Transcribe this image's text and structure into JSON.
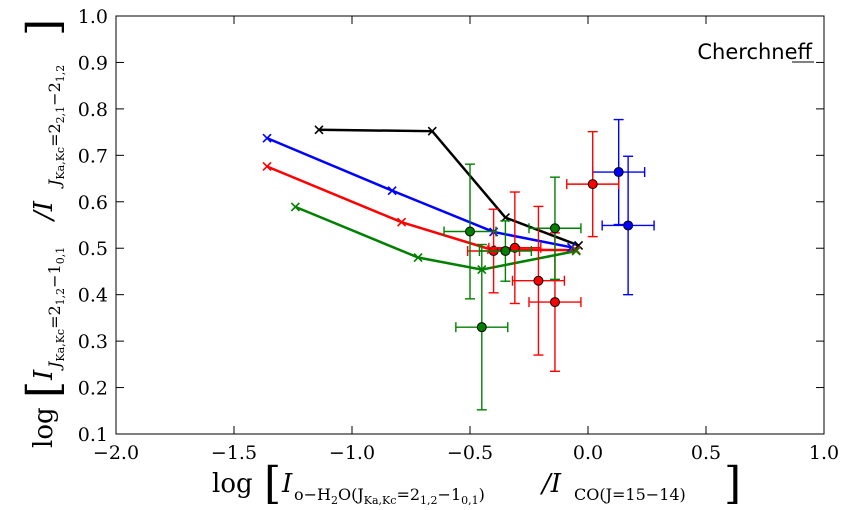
{
  "chart_data": {
    "type": "scatter",
    "title": "",
    "annotation": "Cherchneff",
    "xlabel": {
      "prefix": "log",
      "main": "I",
      "sub1": "o−H",
      "sub1_sub": "2",
      "sub2": "O(J",
      "sub2_sub": "Ka,Kc",
      "sub3": "=2",
      "sub3_sub": "1,2",
      "sub4": "−1",
      "sub4_sub": "0,1",
      "sub5": ")",
      "div": "/I",
      "sub6": "CO(J=15−14)"
    },
    "ylabel": {
      "prefix": "log",
      "main": "I",
      "sub1": "J",
      "sub1_sub": "Ka,Kc",
      "sub2": "=2",
      "sub2_sub": "1,2",
      "sub3": "−1",
      "sub3_sub": "0,1",
      "div": "/I",
      "sub4": "J",
      "sub4_sub": "Ka,Kc",
      "sub5": "=2",
      "sub5_sub": "2,1",
      "sub6": "−2",
      "sub6_sub": "1,2"
    },
    "xlim": [
      -2.0,
      1.0
    ],
    "ylim": [
      0.1,
      1.0
    ],
    "xticks": [
      "−2.0",
      "−1.5",
      "−1.0",
      "−0.5",
      "0.0",
      "0.5",
      "1.0"
    ],
    "yticks": [
      "0.1",
      "0.2",
      "0.3",
      "0.4",
      "0.5",
      "0.6",
      "0.7",
      "0.8",
      "0.9",
      "1.0"
    ],
    "xtick_values": [
      -2.0,
      -1.5,
      -1.0,
      -0.5,
      0.0,
      0.5,
      1.0
    ],
    "ytick_values": [
      0.1,
      0.2,
      0.3,
      0.4,
      0.5,
      0.6,
      0.7,
      0.8,
      0.9,
      1.0
    ],
    "model_series": [
      {
        "name": "black",
        "color": "#000000",
        "x": [
          -1.14,
          -0.66,
          -0.35,
          -0.04
        ],
        "y": [
          0.755,
          0.752,
          0.566,
          0.506
        ]
      },
      {
        "name": "blue",
        "color": "#0000ff",
        "x": [
          -1.36,
          -0.83,
          -0.4,
          -0.07
        ],
        "y": [
          0.737,
          0.624,
          0.535,
          0.502
        ]
      },
      {
        "name": "red",
        "color": "#ff0000",
        "x": [
          -1.36,
          -0.79,
          -0.41,
          -0.05
        ],
        "y": [
          0.676,
          0.556,
          0.497,
          0.496
        ]
      },
      {
        "name": "green",
        "color": "#008000",
        "x": [
          -1.24,
          -0.72,
          -0.45,
          -0.05
        ],
        "y": [
          0.589,
          0.48,
          0.454,
          0.494
        ]
      }
    ],
    "observations": [
      {
        "color": "#0000ff",
        "points": [
          {
            "x": 0.13,
            "y": 0.664,
            "xerr": 0.11,
            "yerr": 0.113
          },
          {
            "x": 0.17,
            "y": 0.549,
            "xerr": 0.11,
            "yerr": 0.149
          }
        ]
      },
      {
        "color": "#ff0000",
        "points": [
          {
            "x": 0.02,
            "y": 0.638,
            "xerr": 0.11,
            "yerr": 0.113
          },
          {
            "x": -0.4,
            "y": 0.494,
            "xerr": 0.11,
            "yerr": 0.09
          },
          {
            "x": -0.31,
            "y": 0.501,
            "xerr": 0.11,
            "yerr": 0.12
          },
          {
            "x": -0.21,
            "y": 0.43,
            "xerr": 0.11,
            "yerr": 0.16
          },
          {
            "x": -0.14,
            "y": 0.384,
            "xerr": 0.11,
            "yerr": 0.149
          }
        ]
      },
      {
        "color": "#008000",
        "points": [
          {
            "x": -0.5,
            "y": 0.536,
            "xerr": 0.11,
            "yerr": 0.145
          },
          {
            "x": -0.35,
            "y": 0.494,
            "xerr": 0.11,
            "yerr": 0.065
          },
          {
            "x": -0.14,
            "y": 0.543,
            "xerr": 0.11,
            "yerr": 0.11
          },
          {
            "x": -0.45,
            "y": 0.33,
            "xerr": 0.11,
            "yerr": 0.178
          }
        ]
      }
    ]
  }
}
